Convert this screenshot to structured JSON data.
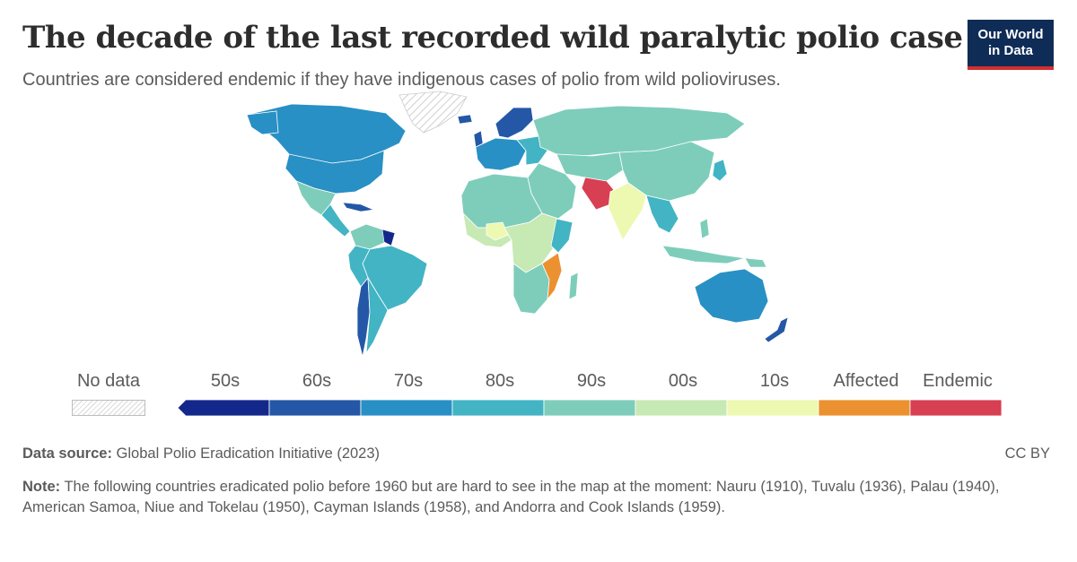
{
  "header": {
    "title": "The decade of the last recorded wild paralytic polio case",
    "subtitle": "Countries are considered endemic if they have indigenous cases of polio from wild polioviruses."
  },
  "logo": {
    "line1": "Our World",
    "line2": "in Data"
  },
  "legend": {
    "no_data_label": "No data",
    "bins": [
      {
        "label": "50s",
        "color": "#14288c"
      },
      {
        "label": "60s",
        "color": "#2458a6"
      },
      {
        "label": "70s",
        "color": "#2890c4"
      },
      {
        "label": "80s",
        "color": "#42b4c4"
      },
      {
        "label": "90s",
        "color": "#7ecdbb"
      },
      {
        "label": "00s",
        "color": "#c7e9b4"
      },
      {
        "label": "10s",
        "color": "#edf8b1"
      },
      {
        "label": "Affected",
        "color": "#eb9130"
      },
      {
        "label": "Endemic",
        "color": "#d73f52"
      }
    ]
  },
  "footer": {
    "source_label": "Data source:",
    "source_text": " Global Polio Eradication Initiative (2023)",
    "license": "CC BY",
    "note_label": "Note:",
    "note_text": " The following countries eradicated polio before 1960 but are hard to see in the map at the moment: Nauru (1910), Tuvalu (1936), Palau (1940), American Samoa, Niue and Tokelau (1950), Cayman Islands (1958), and Andorra and Cook Islands (1959)."
  }
}
